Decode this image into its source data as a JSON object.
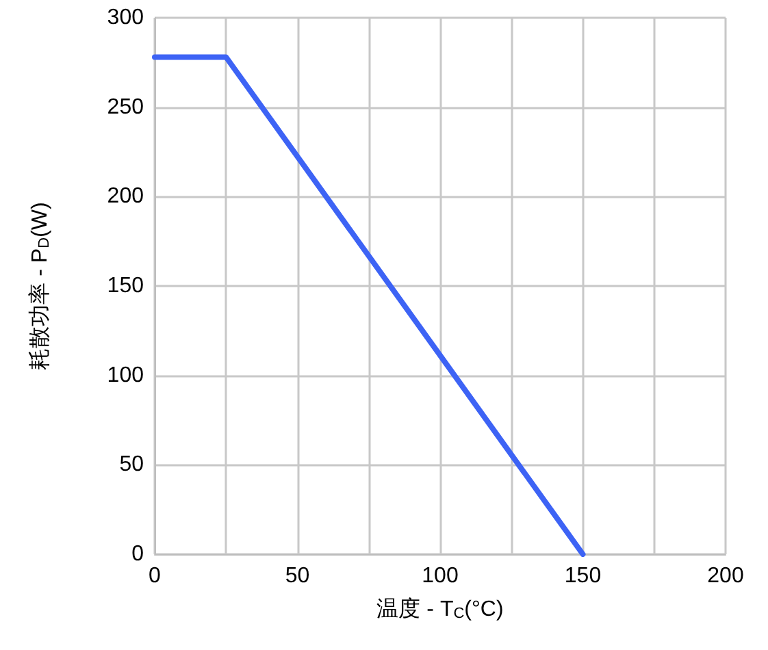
{
  "chart_data": {
    "type": "line",
    "xlabel": "温度 - T$_{C}$(°C)",
    "ylabel": "耗散功率 - P$_{D}$(W)",
    "x": [
      0,
      25,
      150
    ],
    "series": [
      {
        "color": "#3d63f5",
        "values": [
          278,
          278,
          0
        ]
      }
    ],
    "xlim": [
      0,
      200
    ],
    "xticks": [
      0,
      {
        "value": 25,
        "label": null
      },
      50,
      {
        "value": 75,
        "label": null
      },
      100,
      {
        "value": 125,
        "label": null
      },
      150,
      {
        "value": 175,
        "label": null
      },
      200
    ],
    "ylim": [
      0,
      300
    ],
    "yticks": [
      0,
      50,
      100,
      150,
      200,
      250,
      300
    ],
    "grid": true,
    "marker": "none",
    "line_style": "solid"
  }
}
